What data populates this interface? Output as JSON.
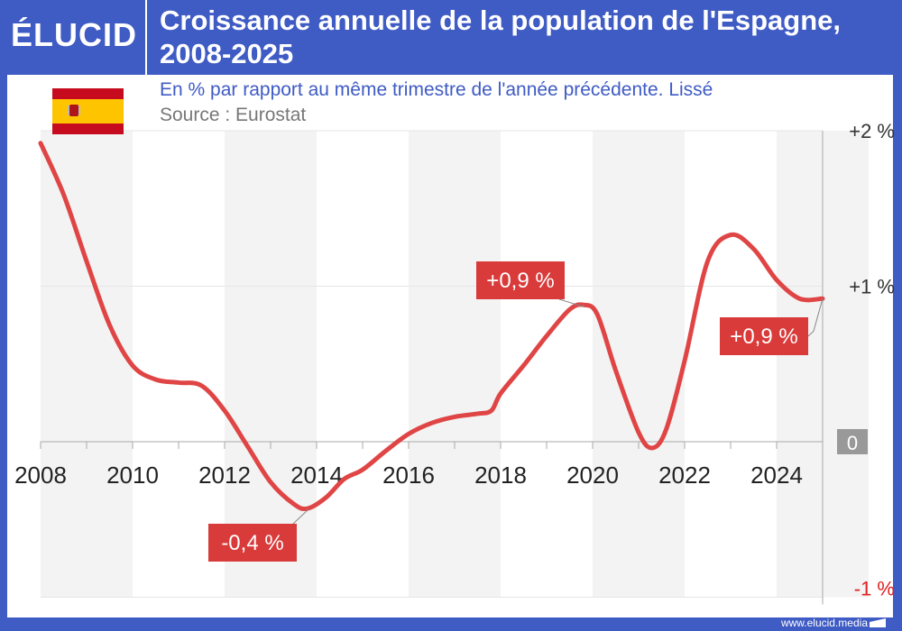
{
  "brand": {
    "logo": "ÉLUCID",
    "footer": "www.elucid.media"
  },
  "header": {
    "title": "Croissance annuelle de la population de l'Espagne, 2008-2025"
  },
  "subtitle": "En % par rapport au même trimestre de l'année précédente. Lissé",
  "source": "Source : Eurostat",
  "colors": {
    "line": "#e04545",
    "brand": "#3f5bc4",
    "label_bg": "#d93a3a",
    "zero_bg": "#999999",
    "neg_tick": "#e02020"
  },
  "chart_data": {
    "type": "line",
    "title": "Croissance annuelle de la population de l'Espagne, 2008-2025",
    "subtitle": "En % par rapport au même trimestre de l'année précédente. Lissé",
    "xlim": [
      2008,
      2025
    ],
    "ylim": [
      -1,
      2
    ],
    "x_ticks": [
      "2008",
      "2010",
      "2012",
      "2014",
      "2016",
      "2018",
      "2020",
      "2022",
      "2024"
    ],
    "y_ticks": [
      {
        "v": 2,
        "label": "+2 %"
      },
      {
        "v": 1,
        "label": "+1 %"
      },
      {
        "v": 0,
        "label": "0"
      },
      {
        "v": -1,
        "label": "-1 %"
      }
    ],
    "grid": true,
    "series": [
      {
        "x": [
          2008.0,
          2008.5,
          2009.0,
          2009.5,
          2010.0,
          2010.5,
          2011.0,
          2011.5,
          2012.0,
          2012.5,
          2013.0,
          2013.5,
          2013.8,
          2014.2,
          2014.6,
          2015.0,
          2015.5,
          2016.0,
          2016.5,
          2017.0,
          2017.5,
          2017.8,
          2018.0,
          2018.5,
          2019.0,
          2019.5,
          2019.8,
          2020.1,
          2020.5,
          2021.0,
          2021.3,
          2021.6,
          2022.0,
          2022.5,
          2023.0,
          2023.5,
          2024.0,
          2024.5,
          2025.0
        ],
        "y": [
          1.92,
          1.59,
          1.16,
          0.75,
          0.49,
          0.4,
          0.38,
          0.36,
          0.2,
          -0.03,
          -0.26,
          -0.4,
          -0.43,
          -0.36,
          -0.24,
          -0.18,
          -0.06,
          0.05,
          0.12,
          0.16,
          0.18,
          0.2,
          0.31,
          0.49,
          0.68,
          0.85,
          0.88,
          0.82,
          0.46,
          0.06,
          -0.04,
          0.08,
          0.52,
          1.16,
          1.33,
          1.24,
          1.04,
          0.92,
          0.92
        ]
      }
    ],
    "annotations": [
      {
        "label": "+0,9 %",
        "x": 2019.8,
        "y": 0.88
      },
      {
        "label": "-0,4 %",
        "x": 2013.8,
        "y": -0.43
      },
      {
        "label": "+0,9 %",
        "x": 2025.0,
        "y": 0.92
      }
    ]
  }
}
